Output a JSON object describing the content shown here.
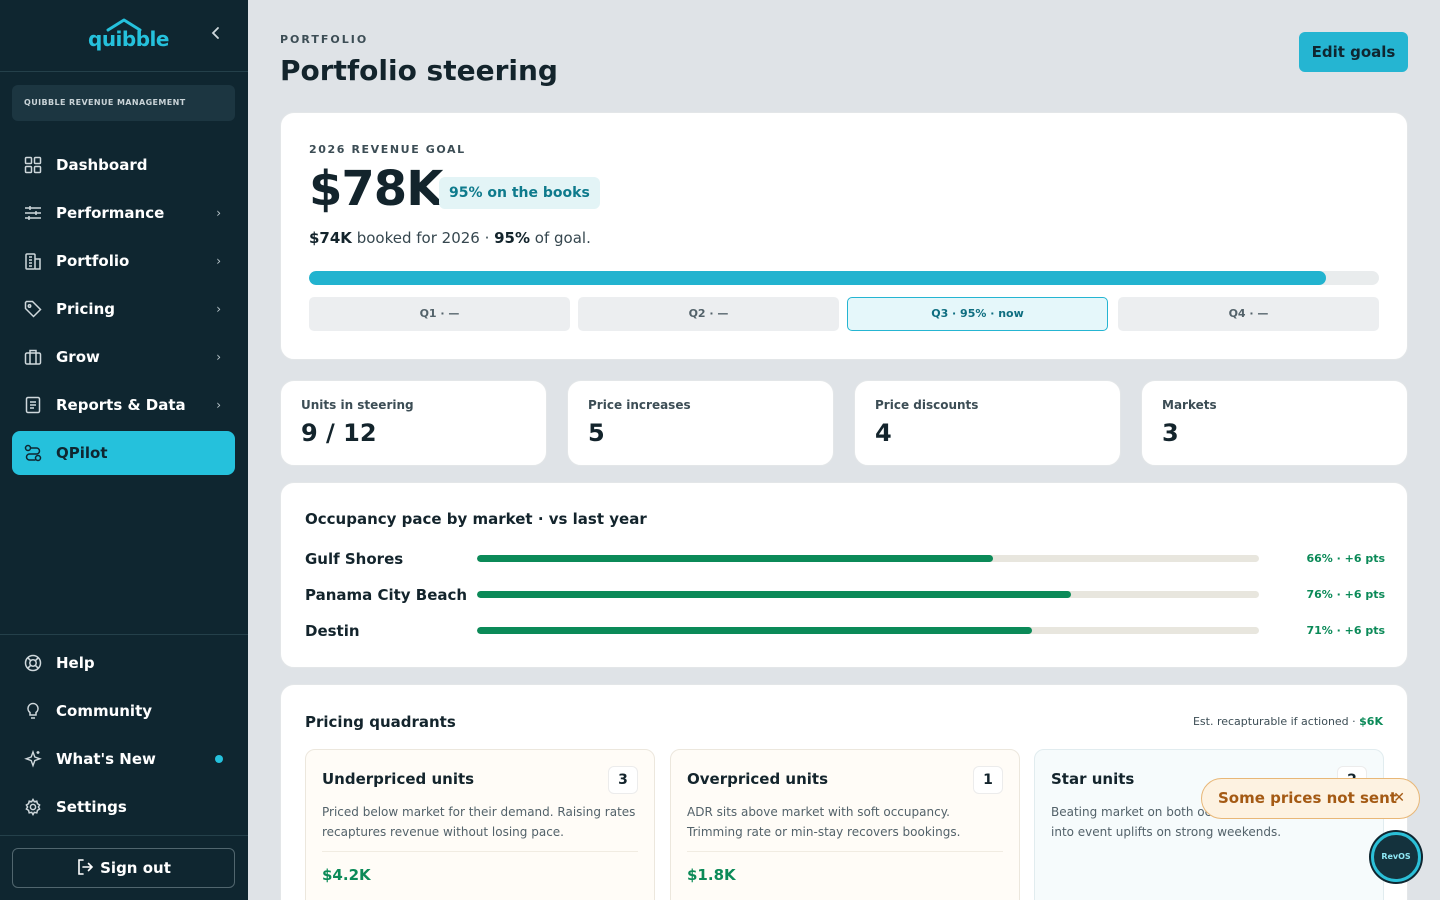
{
  "brand": {
    "name": "quibble",
    "accent": "#25c1dc",
    "sidebar_bg": "#0f2630"
  },
  "sidebar": {
    "collapse_icon": "chevron-left-icon",
    "workspace": "QUIBBLE REVENUE MANAGEMENT",
    "items": [
      {
        "label": "Dashboard",
        "icon": "grid-icon",
        "chevron": false
      },
      {
        "label": "Performance",
        "icon": "sliders-icon",
        "chevron": true
      },
      {
        "label": "Portfolio",
        "icon": "building-icon",
        "chevron": true
      },
      {
        "label": "Pricing",
        "icon": "tag-icon",
        "chevron": true
      },
      {
        "label": "Grow",
        "icon": "briefcase-icon",
        "chevron": true
      },
      {
        "label": "Reports & Data",
        "icon": "report-icon",
        "chevron": true
      },
      {
        "label": "QPilot",
        "icon": "route-icon",
        "chevron": false,
        "active": true
      }
    ],
    "bottom_items": [
      {
        "label": "Help",
        "icon": "lifebuoy-icon"
      },
      {
        "label": "Community",
        "icon": "lightbulb-icon"
      },
      {
        "label": "What's New",
        "icon": "sparkle-icon",
        "has_dot": true
      },
      {
        "label": "Settings",
        "icon": "gear-icon"
      }
    ],
    "sign_out": "Sign out"
  },
  "header": {
    "eyebrow": "PORTFOLIO",
    "title": "Portfolio steering",
    "edit_button": "Edit goals"
  },
  "goal": {
    "eyebrow": "2026 REVENUE GOAL",
    "value": "$78K",
    "badge": "95% on the books",
    "booked": "$74K",
    "booked_text": " booked for 2026 · ",
    "pct": "95%",
    "pct_text": " of goal.",
    "progress": 0.95,
    "quarters": [
      {
        "label": "Q1 · —",
        "current": false
      },
      {
        "label": "Q2 · —",
        "current": false
      },
      {
        "label": "Q3 · 95% · now",
        "current": true
      },
      {
        "label": "Q4 · —",
        "current": false
      }
    ]
  },
  "stats": [
    {
      "label": "Units in steering",
      "value": "9 / 12"
    },
    {
      "label": "Price increases",
      "value": "5"
    },
    {
      "label": "Price discounts",
      "value": "4"
    },
    {
      "label": "Markets",
      "value": "3"
    }
  ],
  "occupancy": {
    "title": "Occupancy pace by market · vs last year",
    "rows": [
      {
        "market": "Gulf Shores",
        "occupancy": 0.66,
        "value": "66% · +6 pts"
      },
      {
        "market": "Panama City Beach",
        "occupancy": 0.76,
        "value": "76% · +6 pts"
      },
      {
        "market": "Destin",
        "occupancy": 0.71,
        "value": "71% · +6 pts"
      }
    ]
  },
  "quadrants": {
    "title": "Pricing quadrants",
    "est_label": "Est. recapturable if actioned · ",
    "est_value": "$6K",
    "cards": [
      {
        "title": "Underpriced units",
        "count": "3",
        "desc": "Priced below market for their demand. Raising rates recaptures revenue without losing pace.",
        "value": "$4.2K"
      },
      {
        "title": "Overpriced units",
        "count": "1",
        "desc": "ADR sits above market with soft occupancy. Trimming rate or min-stay recovers bookings.",
        "value": "$1.8K"
      },
      {
        "title": "Star units",
        "count": "2",
        "desc": "Beating market on both occupancy and ADR. Lean into event uplifts on strong weekends.",
        "value": ""
      }
    ]
  },
  "toast": {
    "text": "Some prices not sent",
    "close_icon": "close-icon"
  },
  "assistant": {
    "label": "RevOS"
  }
}
